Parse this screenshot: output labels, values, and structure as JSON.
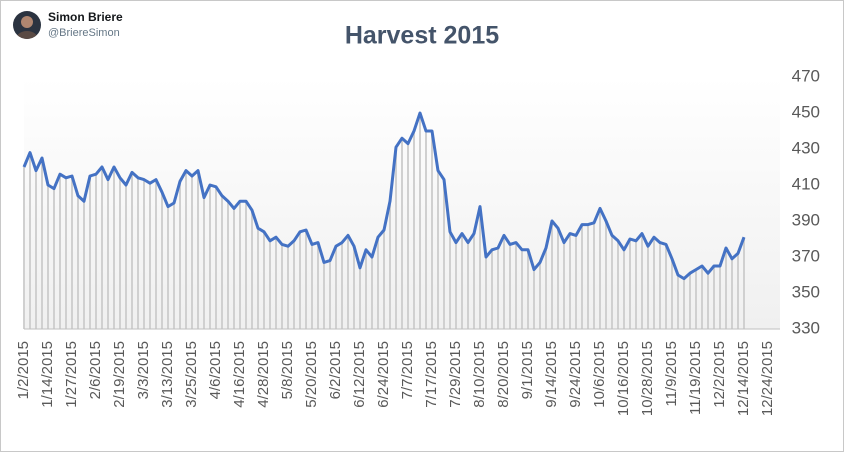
{
  "author": {
    "name": "Simon Briere",
    "handle": "@BriereSimon"
  },
  "chart_data": {
    "type": "line",
    "title": "Harvest 2015",
    "categories": [
      "1/2/2015",
      null,
      null,
      null,
      "1/14/2015",
      null,
      null,
      null,
      "1/27/2015",
      null,
      null,
      null,
      "2/6/2015",
      null,
      null,
      null,
      "2/19/2015",
      null,
      null,
      null,
      "3/3/2015",
      null,
      null,
      null,
      "3/13/2015",
      null,
      null,
      null,
      "3/25/2015",
      null,
      null,
      null,
      "4/6/2015",
      null,
      null,
      null,
      "4/16/2015",
      null,
      null,
      null,
      "4/28/2015",
      null,
      null,
      null,
      "5/8/2015",
      null,
      null,
      null,
      "5/20/2015",
      null,
      null,
      null,
      "6/2/2015",
      null,
      null,
      null,
      "6/12/2015",
      null,
      null,
      null,
      "6/24/2015",
      null,
      null,
      null,
      "7/7/2015",
      null,
      null,
      null,
      "7/17/2015",
      null,
      null,
      null,
      "7/29/2015",
      null,
      null,
      null,
      "8/10/2015",
      null,
      null,
      null,
      "8/20/2015",
      null,
      null,
      null,
      "9/1/2015",
      null,
      null,
      null,
      "9/14/2015",
      null,
      null,
      null,
      "9/24/2015",
      null,
      null,
      null,
      "10/6/2015",
      null,
      null,
      null,
      "10/16/2015",
      null,
      null,
      null,
      "10/28/2015",
      null,
      null,
      null,
      "11/9/2015",
      null,
      null,
      null,
      "11/19/2015",
      null,
      null,
      null,
      "12/2/2015",
      null,
      null,
      null,
      "12/14/2015",
      null,
      null,
      null,
      "12/24/2015"
    ],
    "values": [
      420,
      428,
      418,
      425,
      410,
      408,
      416,
      414,
      415,
      404,
      401,
      415,
      416,
      420,
      413,
      420,
      414,
      410,
      417,
      414,
      413,
      411,
      413,
      406,
      398,
      400,
      412,
      418,
      415,
      418,
      403,
      410,
      409,
      404,
      401,
      397,
      401,
      401,
      396,
      386,
      384,
      379,
      381,
      377,
      376,
      379,
      384,
      385,
      377,
      378,
      367,
      368,
      376,
      378,
      382,
      376,
      364,
      374,
      370,
      381,
      385,
      401,
      431,
      436,
      433,
      440,
      450,
      440,
      440,
      418,
      413,
      384,
      378,
      383,
      378,
      383,
      398,
      370,
      374,
      375,
      382,
      377,
      378,
      374,
      374,
      363,
      367,
      375,
      390,
      386,
      378,
      383,
      382,
      388,
      388,
      389,
      397,
      390,
      382,
      379,
      374,
      380,
      379,
      383,
      376,
      381,
      378,
      377,
      369,
      360,
      358,
      361,
      363,
      365,
      361,
      365,
      365,
      375,
      369,
      372,
      381,
      null,
      null,
      null,
      null
    ],
    "color": "#4472c4",
    "bar_color": "#d0d0d0",
    "ylim": [
      330,
      470
    ],
    "yticks": [
      330,
      350,
      370,
      390,
      410,
      430,
      450,
      470
    ],
    "y_axis_side": "right"
  }
}
